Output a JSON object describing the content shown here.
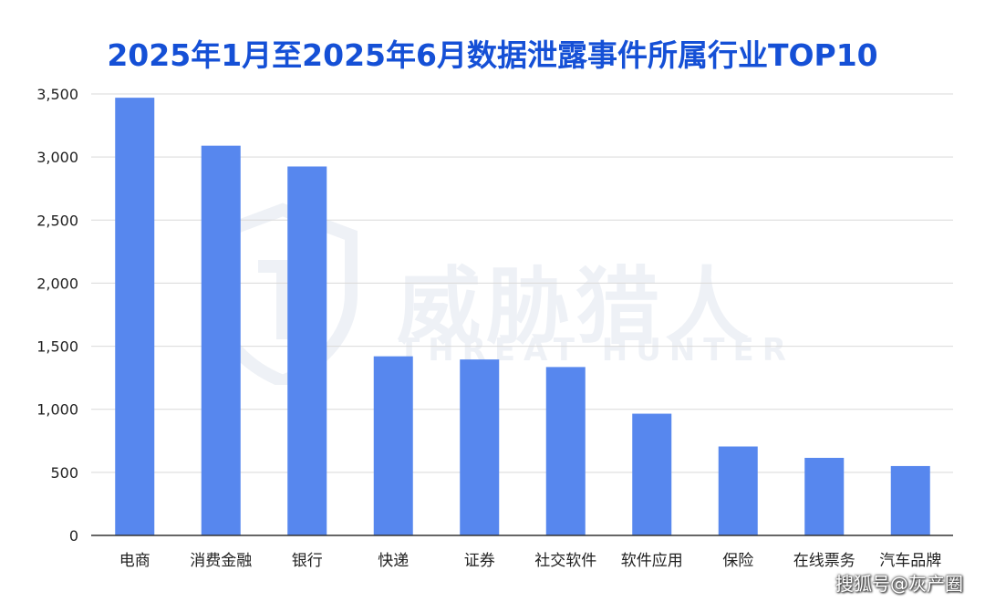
{
  "chart_data": {
    "type": "bar",
    "title": "2025年1月至2025年6月数据泄露事件所属行业TOP10",
    "xlabel": "",
    "ylabel": "",
    "categories": [
      "电商",
      "消费金融",
      "银行",
      "快递",
      "证券",
      "社交软件",
      "软件应用",
      "保险",
      "在线票务",
      "汽车品牌"
    ],
    "values": [
      3470,
      3090,
      2925,
      1420,
      1395,
      1335,
      965,
      705,
      615,
      550
    ],
    "ylim": [
      0,
      3500
    ],
    "yticks": [
      0,
      500,
      1000,
      1500,
      2000,
      2500,
      3000,
      3500
    ],
    "ytick_labels": [
      "0",
      "500",
      "1,000",
      "1,500",
      "2,000",
      "2,500",
      "3,000",
      "3,500"
    ],
    "grid": true,
    "bar_color": "#5787ee",
    "title_color": "#1550d6"
  },
  "watermark": {
    "logo_text": "威胁猎人",
    "sub_text": "THREAT HUNTER",
    "icon": "shield-icon"
  },
  "credit": "搜狐号@灰产圈"
}
